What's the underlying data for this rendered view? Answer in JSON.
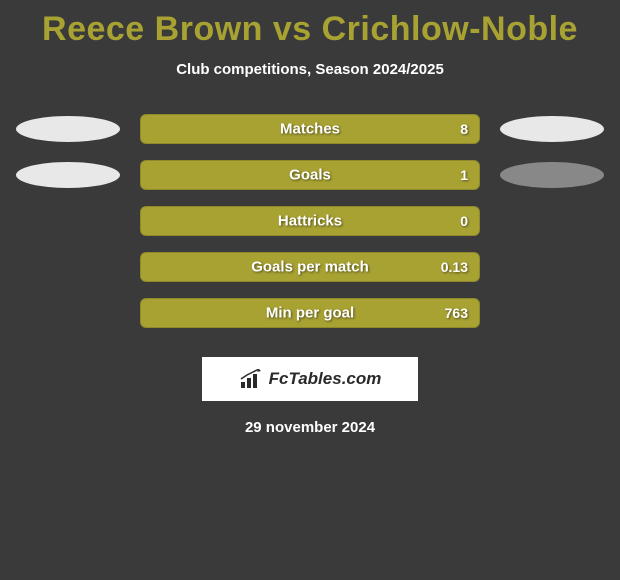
{
  "title": "Reece Brown vs Crichlow-Noble",
  "subtitle": "Club competitions, Season 2024/2025",
  "colors": {
    "background": "#3a3a3a",
    "title_color": "#a8a233",
    "ellipse_white": "#e8e8e8",
    "ellipse_gray": "#888888",
    "bar_fill": "#a8a233",
    "bar_border": "#8a8528",
    "text_white": "#ffffff"
  },
  "stats": [
    {
      "label": "Matches",
      "value": "8",
      "bar_width_pct": 100,
      "left_ellipse": "#e8e8e8",
      "right_ellipse": "#e8e8e8"
    },
    {
      "label": "Goals",
      "value": "1",
      "bar_width_pct": 100,
      "left_ellipse": "#e8e8e8",
      "right_ellipse": "#888888"
    },
    {
      "label": "Hattricks",
      "value": "0",
      "bar_width_pct": 100,
      "left_ellipse": null,
      "right_ellipse": null
    },
    {
      "label": "Goals per match",
      "value": "0.13",
      "bar_width_pct": 100,
      "left_ellipse": null,
      "right_ellipse": null
    },
    {
      "label": "Min per goal",
      "value": "763",
      "bar_width_pct": 100,
      "left_ellipse": null,
      "right_ellipse": null
    }
  ],
  "footer": {
    "brand": "FcTables.com"
  },
  "date": "29 november 2024"
}
